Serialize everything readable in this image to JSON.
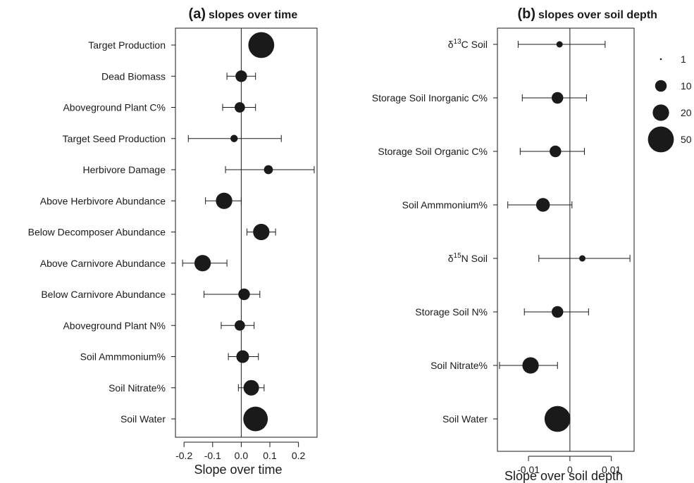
{
  "chart_data": [
    {
      "type": "scatter",
      "panel_tag": "(a)",
      "title": "slopes over time",
      "xlabel": "Slope over time",
      "xlim": [
        -0.23,
        0.265
      ],
      "xticks": [
        -0.2,
        -0.1,
        0.0,
        0.1,
        0.2
      ],
      "xtick_labels": [
        "-0.2",
        "-0.1",
        "0.0",
        "0.1",
        "0.2"
      ],
      "zero_line": 0,
      "categories": [
        "Target Production",
        "Dead Biomass",
        "Aboveground Plant C%",
        "Target Seed Production",
        "Herbivore Damage",
        "Above Herbivore Abundance",
        "Below Decomposer Abundance",
        "Above Carnivore Abundance",
        "Below Carnivore Abundance",
        "Aboveground Plant N%",
        "Soil Ammmonium%",
        "Soil  Nitrate%",
        "Soil Water"
      ],
      "estimate": [
        0.07,
        0.0,
        -0.005,
        -0.025,
        0.095,
        -0.06,
        0.07,
        -0.135,
        0.01,
        -0.005,
        0.005,
        0.035,
        0.05
      ],
      "lower": [
        null,
        -0.05,
        -0.065,
        -0.185,
        -0.055,
        -0.125,
        0.02,
        -0.205,
        -0.13,
        -0.07,
        -0.045,
        -0.01,
        0.02
      ],
      "upper": [
        null,
        0.05,
        0.05,
        0.14,
        0.255,
        0.0,
        0.12,
        -0.05,
        0.065,
        0.045,
        0.06,
        0.08,
        0.085
      ],
      "sample_size": [
        50,
        10,
        8,
        4,
        6,
        20,
        20,
        20,
        10,
        8,
        12,
        18,
        45
      ]
    },
    {
      "type": "scatter",
      "panel_tag": "(b)",
      "title": "slopes over soil depth",
      "xlabel": "Slope over soil depth",
      "xlim": [
        -0.0175,
        0.0155
      ],
      "xticks": [
        -0.01,
        0.0,
        0.01
      ],
      "xtick_labels": [
        "-0.01",
        "0",
        "0.01"
      ],
      "zero_line": 0,
      "categories": [
        {
          "prefix": "δ",
          "sup": "13",
          "rest": "C Soil"
        },
        {
          "prefix": "Storage Soil Inorganic C%",
          "sup": "",
          "rest": ""
        },
        {
          "prefix": "Storage Soil Organic C%",
          "sup": "",
          "rest": ""
        },
        {
          "prefix": "Soil Ammmonium%",
          "sup": "",
          "rest": ""
        },
        {
          "prefix": "δ",
          "sup": "15",
          "rest": "N Soil"
        },
        {
          "prefix": "Storage Soil N%",
          "sup": "",
          "rest": ""
        },
        {
          "prefix": "Soil  Nitrate%",
          "sup": "",
          "rest": ""
        },
        {
          "prefix": "Soil Water",
          "sup": "",
          "rest": ""
        }
      ],
      "estimate": [
        -0.0025,
        -0.003,
        -0.0035,
        -0.0065,
        0.003,
        -0.003,
        -0.0095,
        -0.003
      ],
      "lower": [
        -0.0125,
        -0.0115,
        -0.012,
        -0.015,
        -0.0075,
        -0.011,
        -0.017,
        null
      ],
      "upper": [
        0.0085,
        0.004,
        0.0035,
        0.0005,
        0.0145,
        0.0045,
        -0.003,
        null
      ],
      "sample_size": [
        3,
        10,
        10,
        14,
        3,
        10,
        20,
        50
      ]
    }
  ],
  "legend": {
    "title": "",
    "sizes": [
      1,
      10,
      20,
      50
    ],
    "labels": [
      "1",
      "10",
      "20",
      "50"
    ]
  }
}
